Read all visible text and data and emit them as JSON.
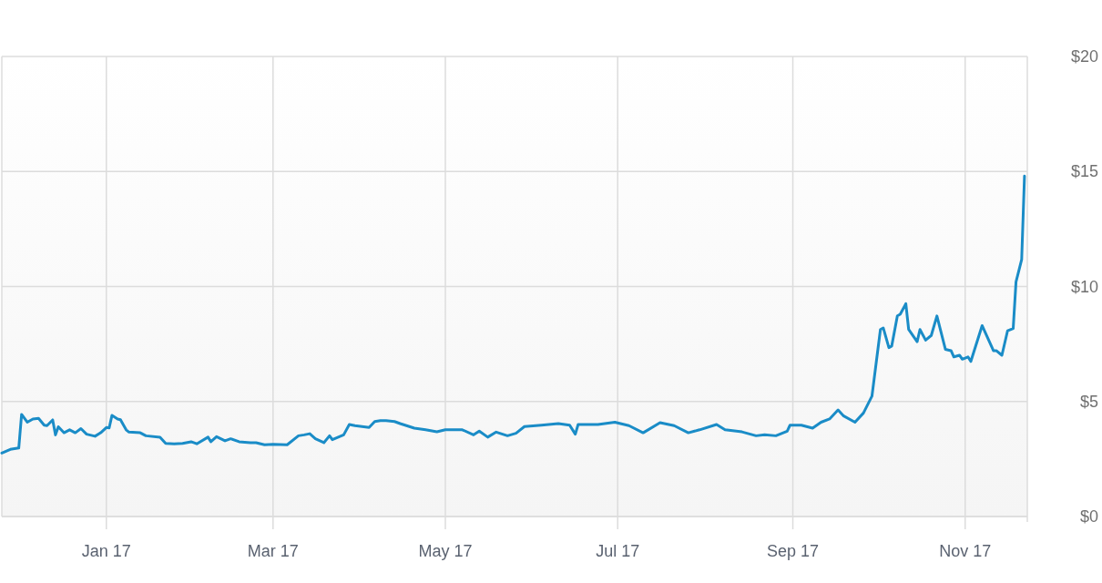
{
  "chart_data": {
    "type": "line",
    "x": [
      "2016-11-25",
      "2016-11-28",
      "2016-12-01",
      "2016-12-02",
      "2016-12-04",
      "2016-12-06",
      "2016-12-08",
      "2016-12-10",
      "2016-12-11",
      "2016-12-13",
      "2016-12-14",
      "2016-12-15",
      "2016-12-17",
      "2016-12-19",
      "2016-12-21",
      "2016-12-23",
      "2016-12-25",
      "2016-12-28",
      "2016-12-30",
      "2017-01-01",
      "2017-01-02",
      "2017-01-03",
      "2017-01-05",
      "2017-01-06",
      "2017-01-08",
      "2017-01-09",
      "2017-01-13",
      "2017-01-15",
      "2017-01-20",
      "2017-01-22",
      "2017-01-25",
      "2017-01-28",
      "2017-01-31",
      "2017-02-02",
      "2017-02-06",
      "2017-02-07",
      "2017-02-09",
      "2017-02-12",
      "2017-02-14",
      "2017-02-17",
      "2017-02-21",
      "2017-02-23",
      "2017-02-26",
      "2017-03-01",
      "2017-03-06",
      "2017-03-10",
      "2017-03-12",
      "2017-03-14",
      "2017-03-16",
      "2017-03-19",
      "2017-03-21",
      "2017-03-22",
      "2017-03-26",
      "2017-03-28",
      "2017-03-30",
      "2017-04-04",
      "2017-04-06",
      "2017-04-08",
      "2017-04-10",
      "2017-04-13",
      "2017-04-15",
      "2017-04-16",
      "2017-04-20",
      "2017-04-24",
      "2017-04-28",
      "2017-05-01",
      "2017-05-07",
      "2017-05-11",
      "2017-05-13",
      "2017-05-16",
      "2017-05-19",
      "2017-05-23",
      "2017-05-26",
      "2017-05-29",
      "2017-06-04",
      "2017-06-10",
      "2017-06-14",
      "2017-06-16",
      "2017-06-17",
      "2017-06-24",
      "2017-06-30",
      "2017-07-05",
      "2017-07-10",
      "2017-07-16",
      "2017-07-21",
      "2017-07-26",
      "2017-07-30",
      "2017-08-05",
      "2017-08-08",
      "2017-08-14",
      "2017-08-19",
      "2017-08-22",
      "2017-08-26",
      "2017-08-30",
      "2017-08-31",
      "2017-09-04",
      "2017-09-08",
      "2017-09-11",
      "2017-09-14",
      "2017-09-17",
      "2017-09-19",
      "2017-09-23",
      "2017-09-26",
      "2017-09-29",
      "2017-10-02",
      "2017-10-03",
      "2017-10-05",
      "2017-10-06",
      "2017-10-08",
      "2017-10-09",
      "2017-10-11",
      "2017-10-12",
      "2017-10-15",
      "2017-10-16",
      "2017-10-18",
      "2017-10-20",
      "2017-10-22",
      "2017-10-25",
      "2017-10-27",
      "2017-10-28",
      "2017-10-30",
      "2017-10-31",
      "2017-11-02",
      "2017-11-03",
      "2017-11-07",
      "2017-11-11",
      "2017-11-12",
      "2017-11-14",
      "2017-11-16",
      "2017-11-18",
      "2017-11-19",
      "2017-11-21",
      "2017-11-22"
    ],
    "series": [
      {
        "color": "#1a8cc7",
        "values": [
          2.76,
          2.92,
          2.98,
          4.44,
          4.1,
          4.24,
          4.27,
          3.97,
          3.95,
          4.2,
          3.55,
          3.9,
          3.64,
          3.77,
          3.64,
          3.82,
          3.58,
          3.49,
          3.64,
          3.87,
          3.85,
          4.4,
          4.24,
          4.21,
          3.77,
          3.67,
          3.64,
          3.51,
          3.45,
          3.18,
          3.16,
          3.18,
          3.25,
          3.16,
          3.45,
          3.25,
          3.47,
          3.29,
          3.38,
          3.25,
          3.21,
          3.21,
          3.12,
          3.14,
          3.12,
          3.51,
          3.55,
          3.6,
          3.38,
          3.21,
          3.51,
          3.34,
          3.55,
          4.0,
          3.95,
          3.87,
          4.13,
          4.17,
          4.17,
          4.13,
          4.04,
          4.0,
          3.84,
          3.77,
          3.68,
          3.77,
          3.77,
          3.55,
          3.71,
          3.45,
          3.67,
          3.51,
          3.62,
          3.91,
          3.97,
          4.04,
          3.97,
          3.58,
          4.0,
          4.0,
          4.1,
          3.95,
          3.64,
          4.08,
          3.95,
          3.64,
          3.77,
          4.0,
          3.77,
          3.68,
          3.51,
          3.55,
          3.51,
          3.71,
          3.97,
          3.97,
          3.84,
          4.1,
          4.24,
          4.63,
          4.37,
          4.1,
          4.5,
          5.23,
          8.13,
          8.2,
          7.34,
          7.41,
          8.72,
          8.79,
          9.25,
          8.13,
          7.6,
          8.13,
          7.67,
          7.87,
          8.72,
          7.27,
          7.21,
          6.94,
          7.01,
          6.84,
          6.94,
          6.74,
          8.3,
          7.21,
          7.21,
          7.01,
          8.07,
          8.17,
          10.2,
          11.17,
          14.8
        ]
      }
    ],
    "xlim": [
      "2016-11-25",
      "2017-11-23"
    ],
    "xticks": [
      {
        "value": "2017-01-01",
        "label": "Jan 17"
      },
      {
        "value": "2017-03-01",
        "label": "Mar 17"
      },
      {
        "value": "2017-05-01",
        "label": "May 17"
      },
      {
        "value": "2017-07-01",
        "label": "Jul 17"
      },
      {
        "value": "2017-09-01",
        "label": "Sep 17"
      },
      {
        "value": "2017-11-01",
        "label": "Nov 17"
      }
    ],
    "ylim": [
      0,
      20
    ],
    "yticks": [
      {
        "value": 0,
        "label": "$0"
      },
      {
        "value": 5,
        "label": "$5"
      },
      {
        "value": 10,
        "label": "$10"
      },
      {
        "value": 15,
        "label": "$15"
      },
      {
        "value": 20,
        "label": "$20"
      }
    ],
    "grid": true
  }
}
